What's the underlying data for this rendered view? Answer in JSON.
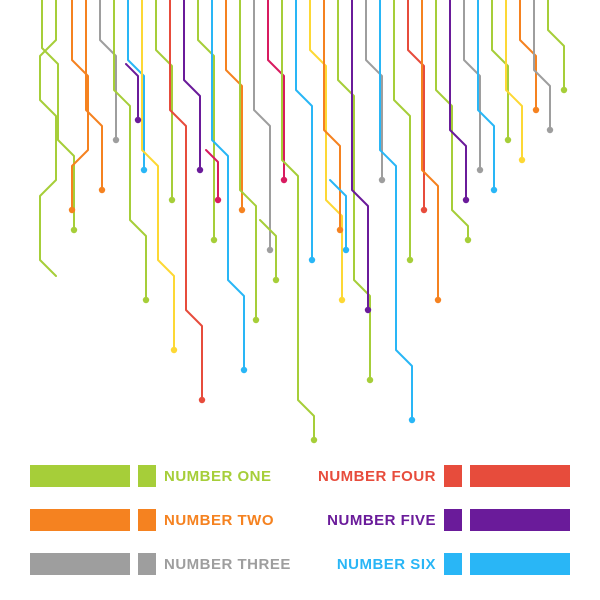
{
  "background_color": "#ffffff",
  "stroke_width": 2,
  "dot_radius": 3.2,
  "palette": {
    "lime": "#a6ce39",
    "orange": "#f58220",
    "gray": "#9e9e9e",
    "red": "#e74c3c",
    "purple": "#6a1b9a",
    "cyan": "#29b6f6",
    "yellow": "#fdd835",
    "magenta": "#d81b60"
  },
  "legend": {
    "label_font_size": 15,
    "left": [
      {
        "label": "NUMBER ONE",
        "color": "#a6ce39"
      },
      {
        "label": "NUMBER TWO",
        "color": "#f58220"
      },
      {
        "label": "NUMBER THREE",
        "color": "#9e9e9e"
      }
    ],
    "right": [
      {
        "label": "NUMBER FOUR",
        "color": "#e74c3c"
      },
      {
        "label": "NUMBER FIVE",
        "color": "#6a1b9a"
      },
      {
        "label": "NUMBER SIX",
        "color": "#29b6f6"
      }
    ]
  },
  "traces": [
    {
      "color": "#a6ce39",
      "end_dot": true,
      "pts": [
        [
          42,
          0
        ],
        [
          42,
          48
        ],
        [
          58,
          64
        ],
        [
          58,
          140
        ],
        [
          74,
          156
        ],
        [
          74,
          230
        ]
      ]
    },
    {
      "color": "#a6ce39",
      "end_dot": false,
      "pts": [
        [
          56,
          0
        ],
        [
          56,
          40
        ],
        [
          40,
          56
        ],
        [
          40,
          100
        ],
        [
          56,
          116
        ],
        [
          56,
          180
        ],
        [
          40,
          196
        ],
        [
          40,
          260
        ],
        [
          56,
          276
        ]
      ]
    },
    {
      "color": "#f58220",
      "end_dot": true,
      "pts": [
        [
          72,
          0
        ],
        [
          72,
          60
        ],
        [
          88,
          76
        ],
        [
          88,
          150
        ],
        [
          72,
          166
        ],
        [
          72,
          210
        ]
      ]
    },
    {
      "color": "#f58220",
      "end_dot": true,
      "pts": [
        [
          86,
          0
        ],
        [
          86,
          110
        ],
        [
          102,
          126
        ],
        [
          102,
          190
        ]
      ]
    },
    {
      "color": "#9e9e9e",
      "end_dot": true,
      "pts": [
        [
          100,
          0
        ],
        [
          100,
          40
        ],
        [
          116,
          56
        ],
        [
          116,
          140
        ]
      ]
    },
    {
      "color": "#a6ce39",
      "end_dot": true,
      "pts": [
        [
          114,
          0
        ],
        [
          114,
          90
        ],
        [
          130,
          106
        ],
        [
          130,
          220
        ],
        [
          146,
          236
        ],
        [
          146,
          300
        ]
      ]
    },
    {
      "color": "#29b6f6",
      "end_dot": true,
      "pts": [
        [
          128,
          0
        ],
        [
          128,
          60
        ],
        [
          144,
          76
        ],
        [
          144,
          170
        ]
      ]
    },
    {
      "color": "#fdd835",
      "end_dot": true,
      "pts": [
        [
          142,
          0
        ],
        [
          142,
          150
        ],
        [
          158,
          166
        ],
        [
          158,
          260
        ],
        [
          174,
          276
        ],
        [
          174,
          350
        ]
      ]
    },
    {
      "color": "#a6ce39",
      "end_dot": true,
      "pts": [
        [
          156,
          0
        ],
        [
          156,
          50
        ],
        [
          172,
          66
        ],
        [
          172,
          200
        ]
      ]
    },
    {
      "color": "#e74c3c",
      "end_dot": true,
      "pts": [
        [
          170,
          0
        ],
        [
          170,
          110
        ],
        [
          186,
          126
        ],
        [
          186,
          310
        ],
        [
          202,
          326
        ],
        [
          202,
          400
        ]
      ]
    },
    {
      "color": "#6a1b9a",
      "end_dot": true,
      "pts": [
        [
          184,
          0
        ],
        [
          184,
          80
        ],
        [
          200,
          96
        ],
        [
          200,
          170
        ]
      ]
    },
    {
      "color": "#a6ce39",
      "end_dot": true,
      "pts": [
        [
          198,
          0
        ],
        [
          198,
          40
        ],
        [
          214,
          56
        ],
        [
          214,
          240
        ]
      ]
    },
    {
      "color": "#29b6f6",
      "end_dot": true,
      "pts": [
        [
          212,
          0
        ],
        [
          212,
          140
        ],
        [
          228,
          156
        ],
        [
          228,
          280
        ],
        [
          244,
          296
        ],
        [
          244,
          370
        ]
      ]
    },
    {
      "color": "#f58220",
      "end_dot": true,
      "pts": [
        [
          226,
          0
        ],
        [
          226,
          70
        ],
        [
          242,
          86
        ],
        [
          242,
          210
        ]
      ]
    },
    {
      "color": "#a6ce39",
      "end_dot": true,
      "pts": [
        [
          240,
          0
        ],
        [
          240,
          190
        ],
        [
          256,
          206
        ],
        [
          256,
          320
        ]
      ]
    },
    {
      "color": "#9e9e9e",
      "end_dot": true,
      "pts": [
        [
          254,
          0
        ],
        [
          254,
          110
        ],
        [
          270,
          126
        ],
        [
          270,
          250
        ]
      ]
    },
    {
      "color": "#d81b60",
      "end_dot": true,
      "pts": [
        [
          268,
          0
        ],
        [
          268,
          60
        ],
        [
          284,
          76
        ],
        [
          284,
          180
        ]
      ]
    },
    {
      "color": "#a6ce39",
      "end_dot": true,
      "pts": [
        [
          282,
          0
        ],
        [
          282,
          160
        ],
        [
          298,
          176
        ],
        [
          298,
          400
        ],
        [
          314,
          416
        ],
        [
          314,
          440
        ]
      ]
    },
    {
      "color": "#29b6f6",
      "end_dot": true,
      "pts": [
        [
          296,
          0
        ],
        [
          296,
          90
        ],
        [
          312,
          106
        ],
        [
          312,
          260
        ]
      ]
    },
    {
      "color": "#fdd835",
      "end_dot": true,
      "pts": [
        [
          310,
          0
        ],
        [
          310,
          50
        ],
        [
          326,
          66
        ],
        [
          326,
          200
        ],
        [
          342,
          216
        ],
        [
          342,
          300
        ]
      ]
    },
    {
      "color": "#f58220",
      "end_dot": true,
      "pts": [
        [
          324,
          0
        ],
        [
          324,
          130
        ],
        [
          340,
          146
        ],
        [
          340,
          230
        ]
      ]
    },
    {
      "color": "#a6ce39",
      "end_dot": true,
      "pts": [
        [
          338,
          0
        ],
        [
          338,
          80
        ],
        [
          354,
          96
        ],
        [
          354,
          280
        ],
        [
          370,
          296
        ],
        [
          370,
          380
        ]
      ]
    },
    {
      "color": "#6a1b9a",
      "end_dot": true,
      "pts": [
        [
          352,
          0
        ],
        [
          352,
          190
        ],
        [
          368,
          206
        ],
        [
          368,
          310
        ]
      ]
    },
    {
      "color": "#9e9e9e",
      "end_dot": true,
      "pts": [
        [
          366,
          0
        ],
        [
          366,
          60
        ],
        [
          382,
          76
        ],
        [
          382,
          180
        ]
      ]
    },
    {
      "color": "#29b6f6",
      "end_dot": true,
      "pts": [
        [
          380,
          0
        ],
        [
          380,
          150
        ],
        [
          396,
          166
        ],
        [
          396,
          350
        ],
        [
          412,
          366
        ],
        [
          412,
          420
        ]
      ]
    },
    {
      "color": "#a6ce39",
      "end_dot": true,
      "pts": [
        [
          394,
          0
        ],
        [
          394,
          100
        ],
        [
          410,
          116
        ],
        [
          410,
          260
        ]
      ]
    },
    {
      "color": "#e74c3c",
      "end_dot": true,
      "pts": [
        [
          408,
          0
        ],
        [
          408,
          50
        ],
        [
          424,
          66
        ],
        [
          424,
          210
        ]
      ]
    },
    {
      "color": "#f58220",
      "end_dot": true,
      "pts": [
        [
          422,
          0
        ],
        [
          422,
          170
        ],
        [
          438,
          186
        ],
        [
          438,
          300
        ]
      ]
    },
    {
      "color": "#a6ce39",
      "end_dot": true,
      "pts": [
        [
          436,
          0
        ],
        [
          436,
          90
        ],
        [
          452,
          106
        ],
        [
          452,
          210
        ],
        [
          468,
          226
        ],
        [
          468,
          240
        ]
      ]
    },
    {
      "color": "#6a1b9a",
      "end_dot": true,
      "pts": [
        [
          450,
          0
        ],
        [
          450,
          130
        ],
        [
          466,
          146
        ],
        [
          466,
          200
        ]
      ]
    },
    {
      "color": "#9e9e9e",
      "end_dot": true,
      "pts": [
        [
          464,
          0
        ],
        [
          464,
          60
        ],
        [
          480,
          76
        ],
        [
          480,
          170
        ]
      ]
    },
    {
      "color": "#29b6f6",
      "end_dot": true,
      "pts": [
        [
          478,
          0
        ],
        [
          478,
          110
        ],
        [
          494,
          126
        ],
        [
          494,
          190
        ]
      ]
    },
    {
      "color": "#a6ce39",
      "end_dot": true,
      "pts": [
        [
          492,
          0
        ],
        [
          492,
          50
        ],
        [
          508,
          66
        ],
        [
          508,
          140
        ]
      ]
    },
    {
      "color": "#fdd835",
      "end_dot": true,
      "pts": [
        [
          506,
          0
        ],
        [
          506,
          90
        ],
        [
          522,
          106
        ],
        [
          522,
          160
        ]
      ]
    },
    {
      "color": "#f58220",
      "end_dot": true,
      "pts": [
        [
          520,
          0
        ],
        [
          520,
          40
        ],
        [
          536,
          56
        ],
        [
          536,
          110
        ]
      ]
    },
    {
      "color": "#9e9e9e",
      "end_dot": true,
      "pts": [
        [
          534,
          0
        ],
        [
          534,
          70
        ],
        [
          550,
          86
        ],
        [
          550,
          130
        ]
      ]
    },
    {
      "color": "#a6ce39",
      "end_dot": true,
      "pts": [
        [
          548,
          0
        ],
        [
          548,
          30
        ],
        [
          564,
          46
        ],
        [
          564,
          90
        ]
      ]
    },
    {
      "color": "#6a1b9a",
      "end_dot": true,
      "pts": [
        [
          126,
          64
        ],
        [
          126,
          64
        ],
        [
          138,
          76
        ],
        [
          138,
          120
        ]
      ]
    },
    {
      "color": "#d81b60",
      "end_dot": true,
      "pts": [
        [
          206,
          150
        ],
        [
          206,
          150
        ],
        [
          218,
          162
        ],
        [
          218,
          200
        ]
      ]
    },
    {
      "color": "#a6ce39",
      "end_dot": true,
      "pts": [
        [
          260,
          220
        ],
        [
          260,
          220
        ],
        [
          276,
          236
        ],
        [
          276,
          280
        ]
      ]
    },
    {
      "color": "#29b6f6",
      "end_dot": true,
      "pts": [
        [
          330,
          180
        ],
        [
          330,
          180
        ],
        [
          346,
          196
        ],
        [
          346,
          250
        ]
      ]
    }
  ]
}
